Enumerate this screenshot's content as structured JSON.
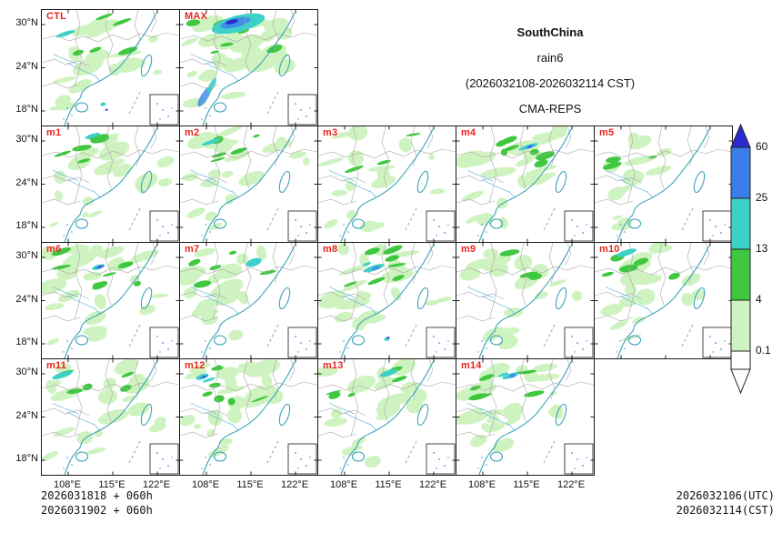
{
  "chart_data": {
    "type": "heatmap",
    "title": "SouthChina",
    "subtitle": "rain6",
    "valid_period": "(2026032108-2026032114 CST)",
    "model": "CMA-REPS",
    "panels": [
      {
        "label": "CTL",
        "intensity": "moderate",
        "south_spot": true
      },
      {
        "label": "MAX",
        "intensity": "heavy",
        "south_spot": false
      },
      {
        "label": "m1",
        "intensity": "moderate",
        "south_spot": false
      },
      {
        "label": "m2",
        "intensity": "moderate",
        "south_spot": false
      },
      {
        "label": "m3",
        "intensity": "light",
        "south_spot": false
      },
      {
        "label": "m4",
        "intensity": "heavy",
        "south_spot": false
      },
      {
        "label": "m5",
        "intensity": "light",
        "south_spot": false
      },
      {
        "label": "m6",
        "intensity": "heavy",
        "south_spot": false
      },
      {
        "label": "m7",
        "intensity": "moderate",
        "south_spot": false
      },
      {
        "label": "m8",
        "intensity": "heavy",
        "south_spot": true
      },
      {
        "label": "m9",
        "intensity": "light",
        "south_spot": false
      },
      {
        "label": "m10",
        "intensity": "moderate",
        "south_spot": false
      },
      {
        "label": "m11",
        "intensity": "moderate",
        "south_spot": false
      },
      {
        "label": "m12",
        "intensity": "heavy",
        "south_spot": false
      },
      {
        "label": "m13",
        "intensity": "moderate",
        "south_spot": false
      },
      {
        "label": "m14",
        "intensity": "heavy",
        "south_spot": false
      }
    ],
    "colorbar": {
      "labels": [
        "60",
        "25",
        "13",
        "4",
        "0.1"
      ],
      "segment_colors": [
        "#3a7de8",
        "#3dd0c8",
        "#3fc83f",
        "#cff3c0",
        "#ffffff"
      ],
      "over_color": "#2a2ad0",
      "under_color": "#ffffff"
    },
    "x_ticks": [
      "108°E",
      "115°E",
      "122°E"
    ],
    "y_ticks": [
      "30°N",
      "24°N",
      "18°N"
    ],
    "init_times": [
      "2026031818 + 060h",
      "2026031902 + 060h"
    ],
    "valid_times": [
      "2026032106(UTC)",
      "2026032114(CST)"
    ],
    "colors": {
      "title": "#0000dd",
      "panel_label": "#e8251e",
      "model": "#b0b0b0",
      "rain_pale": "#cff3c0",
      "rain_mid": "#3fc83f",
      "rain_cyan": "#3dd0c8",
      "rain_blue": "#3f8fe8",
      "rain_dark": "#2a2ad0",
      "coast": "#3aa0b8"
    }
  }
}
